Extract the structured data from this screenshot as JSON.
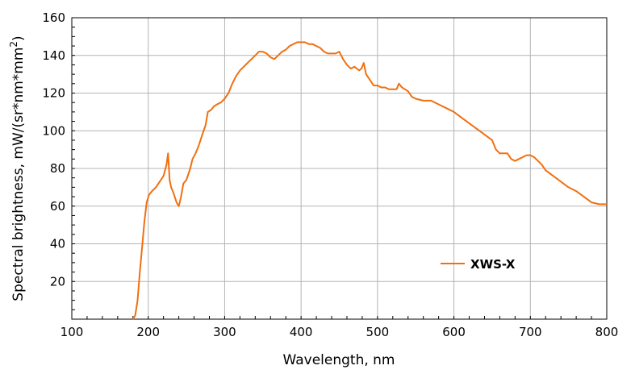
{
  "chart_data": {
    "type": "line",
    "title": "",
    "xlabel": "Wavelength, nm",
    "ylabel_main": "Spectral brightness, mW/(sr*nm*mm",
    "ylabel_sup": "2",
    "ylabel_close": ")",
    "xlim": [
      100,
      800
    ],
    "ylim": [
      0,
      160
    ],
    "xticks": [
      100,
      200,
      300,
      400,
      500,
      600,
      700,
      800
    ],
    "yticks": [
      20,
      40,
      60,
      80,
      100,
      120,
      140,
      160
    ],
    "grid": true,
    "legend_position": "lower-right",
    "color": "#f07010",
    "series": [
      {
        "name": "XWS-X",
        "x": [
          180,
          183,
          186,
          189,
          192,
          195,
          198,
          201,
          205,
          210,
          215,
          220,
          224,
          226,
          228,
          230,
          233,
          237,
          240,
          243,
          246,
          250,
          255,
          258,
          262,
          266,
          270,
          275,
          278,
          282,
          286,
          290,
          295,
          300,
          305,
          310,
          315,
          320,
          330,
          340,
          345,
          350,
          355,
          360,
          365,
          370,
          375,
          380,
          385,
          390,
          395,
          400,
          405,
          410,
          415,
          420,
          425,
          430,
          435,
          440,
          445,
          450,
          455,
          460,
          465,
          470,
          473,
          476,
          479,
          482,
          485,
          490,
          495,
          500,
          505,
          510,
          515,
          520,
          525,
          528,
          532,
          536,
          540,
          545,
          550,
          560,
          570,
          580,
          590,
          600,
          610,
          620,
          630,
          640,
          650,
          655,
          660,
          665,
          670,
          675,
          680,
          685,
          690,
          695,
          700,
          705,
          710,
          715,
          720,
          730,
          740,
          750,
          760,
          770,
          780,
          790,
          800
        ],
        "y": [
          0,
          2,
          10,
          25,
          38,
          52,
          62,
          66,
          68,
          70,
          73,
          76,
          82,
          88,
          74,
          70,
          67,
          62,
          60,
          65,
          72,
          74,
          80,
          85,
          88,
          92,
          97,
          103,
          110,
          111,
          113,
          114,
          115,
          117,
          120,
          125,
          129,
          132,
          136,
          140,
          142,
          142,
          141,
          139,
          138,
          140,
          142,
          143,
          145,
          146,
          147,
          147,
          147,
          146,
          146,
          145,
          144,
          142,
          141,
          141,
          141,
          142,
          138,
          135,
          133,
          134,
          133,
          132,
          133,
          136,
          130,
          127,
          124,
          124,
          123,
          123,
          122,
          122,
          122,
          125,
          123,
          122,
          121,
          118,
          117,
          116,
          116,
          114,
          112,
          110,
          107,
          104,
          101,
          98,
          95,
          90,
          88,
          88,
          88,
          85,
          84,
          85,
          86,
          87,
          87,
          86,
          84,
          82,
          79,
          76,
          73,
          70,
          68,
          65,
          62,
          61,
          61
        ]
      }
    ]
  }
}
